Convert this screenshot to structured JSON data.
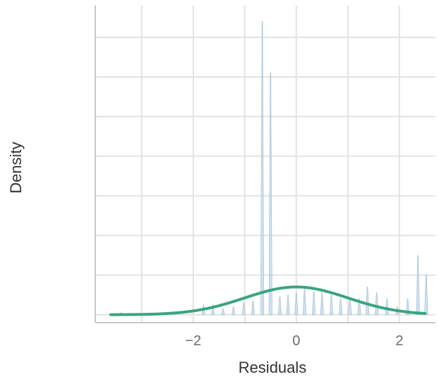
{
  "chart_data": {
    "type": "area",
    "title": "",
    "xlabel": "Residuals",
    "ylabel": "Density",
    "xlim": [
      -3.9,
      2.7
    ],
    "ylim": [
      -0.02,
      0.78
    ],
    "x_ticks": [
      -2,
      0,
      2
    ],
    "x_tick_labels": [
      "−2",
      "0",
      "2"
    ],
    "y_gridlines": [
      0.0,
      0.1,
      0.2,
      0.3,
      0.4,
      0.5,
      0.6,
      0.7
    ],
    "x_minor_gridlines": [
      -3,
      -1,
      1
    ],
    "y_tick_labels_shown": false,
    "grid": true,
    "legend": "none",
    "series": [
      {
        "kind": "empirical_density",
        "x": [
          -3.4,
          -1.8,
          -1.62,
          -1.42,
          -1.22,
          -1.02,
          -0.84,
          -0.66,
          -0.5,
          -0.32,
          -0.16,
          0.0,
          0.16,
          0.34,
          0.5,
          0.68,
          0.86,
          1.04,
          1.22,
          1.38,
          1.56,
          1.76,
          1.96,
          2.16,
          2.36,
          2.52
        ],
        "y": [
          0.005,
          0.025,
          0.025,
          0.015,
          0.02,
          0.03,
          0.035,
          0.74,
          0.61,
          0.045,
          0.05,
          0.055,
          0.065,
          0.058,
          0.055,
          0.05,
          0.04,
          0.04,
          0.04,
          0.07,
          0.055,
          0.04,
          0.02,
          0.04,
          0.15,
          0.1
        ]
      },
      {
        "kind": "normal_curve",
        "mean": 0.0,
        "sd": 1.0,
        "scale": 0.07,
        "x_range": [
          -3.6,
          2.5
        ]
      }
    ],
    "colors": {
      "empirical": "#c9dceb",
      "empirical_stroke": "#a9c4d9",
      "curve": "#3aa57e",
      "grid": "#e3e3e3",
      "axis": "#c8c8c8"
    }
  }
}
